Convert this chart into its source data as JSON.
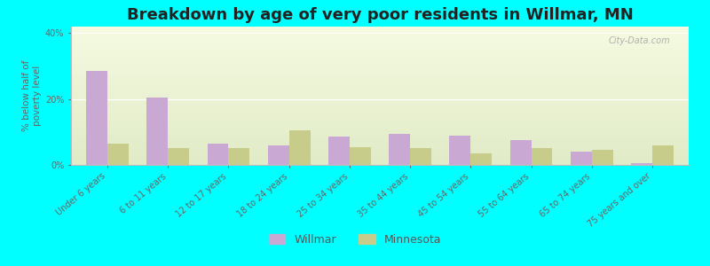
{
  "title": "Breakdown by age of very poor residents in Willmar, MN",
  "ylabel": "% below half of\npoverty level",
  "categories": [
    "Under 6 years",
    "6 to 11 years",
    "12 to 17 years",
    "18 to 24 years",
    "25 to 34 years",
    "35 to 44 years",
    "45 to 54 years",
    "55 to 64 years",
    "65 to 74 years",
    "75 years and over"
  ],
  "willmar": [
    28.5,
    20.5,
    6.5,
    6.0,
    8.5,
    9.5,
    9.0,
    7.5,
    4.0,
    0.5
  ],
  "minnesota": [
    6.5,
    5.0,
    5.0,
    10.5,
    5.5,
    5.0,
    3.5,
    5.0,
    4.5,
    6.0
  ],
  "willmar_color": "#c9a8d4",
  "minnesota_color": "#c8cc8a",
  "ylim": [
    0,
    42
  ],
  "yticks": [
    0,
    20,
    40
  ],
  "ytick_labels": [
    "0%",
    "20%",
    "40%"
  ],
  "background_color": "#00ffff",
  "title_fontsize": 13,
  "axis_label_fontsize": 7.5,
  "tick_fontsize": 7,
  "bar_width": 0.35,
  "legend_labels": [
    "Willmar",
    "Minnesota"
  ],
  "watermark": "City-Data.com"
}
